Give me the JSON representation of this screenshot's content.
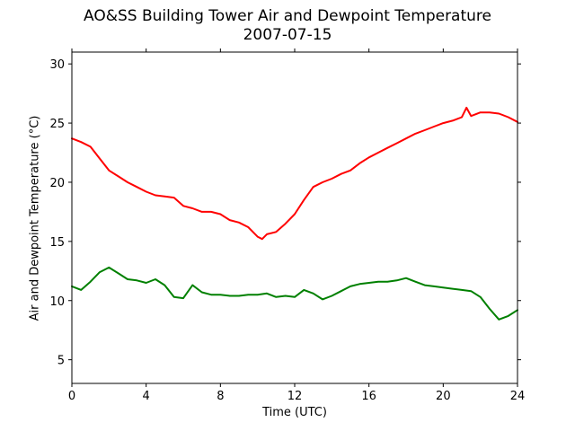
{
  "chart_data": {
    "type": "line",
    "title": "AO&SS Building Tower Air and Dewpoint Temperature",
    "subtitle": "2007-07-15",
    "xlabel": "Time (UTC)",
    "ylabel": "Air and Dewpoint Temperature (°C)",
    "xlim": [
      0,
      24
    ],
    "ylim": [
      3,
      31
    ],
    "xticks": [
      0,
      4,
      8,
      12,
      16,
      20,
      24
    ],
    "yticks": [
      5,
      10,
      15,
      20,
      25,
      30
    ],
    "grid": false,
    "series": [
      {
        "color": "#ff0000",
        "x": [
          0,
          0.5,
          1,
          1.5,
          2,
          2.5,
          3,
          3.5,
          4,
          4.5,
          5,
          5.5,
          6,
          6.5,
          7,
          7.5,
          8,
          8.5,
          9,
          9.5,
          10,
          10.25,
          10.5,
          11,
          11.5,
          12,
          12.5,
          13,
          13.5,
          14,
          14.5,
          15,
          15.5,
          16,
          16.5,
          17,
          17.5,
          18,
          18.5,
          19,
          19.5,
          20,
          20.5,
          21,
          21.25,
          21.5,
          22,
          22.5,
          23,
          23.5,
          24
        ],
        "y": [
          23.7,
          23.4,
          23.0,
          22.0,
          21.0,
          20.5,
          20.0,
          19.6,
          19.2,
          18.9,
          18.8,
          18.7,
          18.0,
          17.8,
          17.5,
          17.5,
          17.3,
          16.8,
          16.6,
          16.2,
          15.4,
          15.2,
          15.6,
          15.8,
          16.5,
          17.3,
          18.5,
          19.6,
          20.0,
          20.3,
          20.7,
          21.0,
          21.6,
          22.1,
          22.5,
          22.9,
          23.3,
          23.7,
          24.1,
          24.4,
          24.7,
          25.0,
          25.2,
          25.5,
          26.3,
          25.6,
          25.9,
          25.9,
          25.8,
          25.5,
          25.1
        ]
      },
      {
        "color": "#008000",
        "x": [
          0,
          0.5,
          1,
          1.5,
          2,
          2.5,
          3,
          3.5,
          4,
          4.5,
          5,
          5.5,
          6,
          6.5,
          7,
          7.5,
          8,
          8.5,
          9,
          9.5,
          10,
          10.5,
          11,
          11.5,
          12,
          12.5,
          13,
          13.5,
          14,
          14.5,
          15,
          15.5,
          16,
          16.5,
          17,
          17.5,
          18,
          18.5,
          19,
          19.5,
          20,
          20.5,
          21,
          21.5,
          22,
          22.5,
          23,
          23.5,
          24
        ],
        "y": [
          11.2,
          10.9,
          11.6,
          12.4,
          12.8,
          12.3,
          11.8,
          11.7,
          11.5,
          11.8,
          11.3,
          10.3,
          10.2,
          11.3,
          10.7,
          10.5,
          10.5,
          10.4,
          10.4,
          10.5,
          10.5,
          10.6,
          10.3,
          10.4,
          10.3,
          10.9,
          10.6,
          10.1,
          10.4,
          10.8,
          11.2,
          11.4,
          11.5,
          11.6,
          11.6,
          11.7,
          11.9,
          11.6,
          11.3,
          11.2,
          11.1,
          11.0,
          10.9,
          10.8,
          10.3,
          9.3,
          8.4,
          8.7,
          9.2
        ]
      }
    ]
  }
}
